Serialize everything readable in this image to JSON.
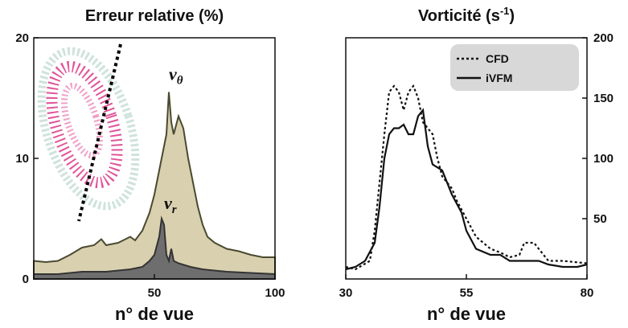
{
  "chart_data": [
    {
      "type": "area",
      "title": "Erreur relative (%)",
      "x_label": "n° de vue",
      "xlim": [
        0,
        100
      ],
      "xticks": [
        50,
        100
      ],
      "ylim": [
        0,
        20
      ],
      "yticks": [
        0,
        10,
        20
      ],
      "series": [
        {
          "name": "vθ",
          "color": "#d9d0b0",
          "edge": "#4a4a30",
          "x": [
            0,
            5,
            10,
            15,
            20,
            25,
            28,
            30,
            35,
            40,
            42,
            45,
            48,
            50,
            52,
            54,
            55,
            56,
            57,
            58,
            60,
            62,
            64,
            66,
            68,
            70,
            72,
            75,
            80,
            85,
            90,
            95,
            100
          ],
          "values": [
            1.5,
            1.4,
            1.5,
            2,
            2.6,
            2.8,
            3.3,
            2.8,
            3,
            3.5,
            3.2,
            4,
            5.5,
            7,
            9,
            11,
            12,
            15.5,
            13,
            12,
            13.5,
            12.5,
            10,
            8,
            6,
            4.5,
            3.5,
            3,
            2.5,
            2.3,
            2,
            1.8,
            1.8
          ]
        },
        {
          "name": "vr",
          "color": "#6e6e6e",
          "edge": "#333333",
          "x": [
            0,
            10,
            20,
            30,
            40,
            45,
            48,
            50,
            52,
            53,
            54,
            55,
            56,
            57,
            58,
            60,
            65,
            70,
            80,
            90,
            100
          ],
          "values": [
            0.4,
            0.4,
            0.6,
            0.6,
            0.8,
            1,
            1.5,
            2,
            3.5,
            5,
            4.5,
            2,
            1.5,
            2.5,
            1.5,
            1.3,
            1,
            0.8,
            0.6,
            0.5,
            0.4
          ]
        }
      ],
      "annotations": [
        {
          "text": "v",
          "sub": "θ",
          "x": 56,
          "y": 16.5
        },
        {
          "text": "v",
          "sub": "r",
          "x": 54,
          "y": 5.8
        }
      ]
    },
    {
      "type": "line",
      "title": [
        "Vorticité (s",
        "-1",
        ")"
      ],
      "x_label": "n° de vue",
      "xlim": [
        30,
        80
      ],
      "xticks": [
        30,
        55,
        80
      ],
      "y2lim": [
        0,
        200
      ],
      "y2ticks": [
        50,
        100,
        150,
        200
      ],
      "legend": "upper right",
      "series": [
        {
          "name": "CFD",
          "color": "#111111",
          "dash": true,
          "axis": "y2",
          "x": [
            30,
            32,
            35,
            36,
            37,
            38,
            39,
            40,
            41,
            42,
            43,
            44,
            45,
            46,
            47,
            48,
            49,
            50,
            52,
            53,
            55,
            57,
            60,
            62,
            64,
            66,
            67,
            68,
            69,
            70,
            72,
            75,
            80
          ],
          "values": [
            10,
            8,
            15,
            40,
            80,
            120,
            155,
            160,
            155,
            140,
            155,
            160,
            150,
            130,
            125,
            120,
            100,
            85,
            75,
            65,
            50,
            35,
            25,
            22,
            18,
            20,
            30,
            30,
            30,
            25,
            15,
            15,
            13
          ]
        },
        {
          "name": "iVFM",
          "color": "#111111",
          "dash": false,
          "axis": "y2",
          "x": [
            30,
            32,
            34,
            36,
            37,
            38,
            39,
            40,
            41,
            42,
            43,
            44,
            45,
            46,
            47,
            48,
            50,
            52,
            54,
            55,
            57,
            60,
            62,
            64,
            66,
            70,
            72,
            75,
            78,
            80
          ],
          "values": [
            8,
            10,
            15,
            30,
            60,
            100,
            120,
            125,
            125,
            128,
            120,
            120,
            135,
            140,
            110,
            95,
            90,
            70,
            55,
            40,
            25,
            20,
            20,
            15,
            15,
            15,
            12,
            10,
            10,
            12
          ]
        }
      ]
    }
  ]
}
